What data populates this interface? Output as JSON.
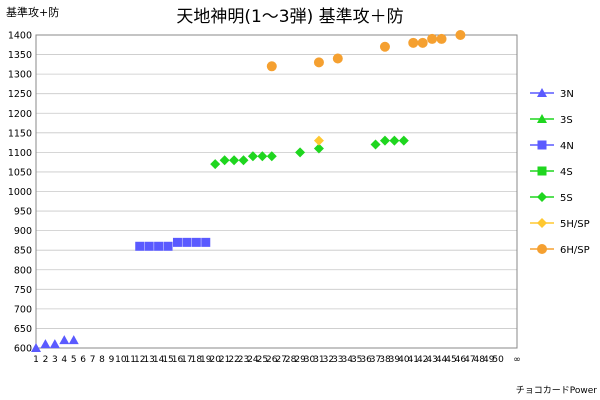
{
  "chart_data": {
    "type": "scatter",
    "title": "天地神明(1～3弾) 基準攻＋防",
    "ylabel": "基準攻+防",
    "xlabel": "",
    "ylim": [
      600,
      1400
    ],
    "y_ticks": [
      600,
      650,
      700,
      750,
      800,
      850,
      900,
      950,
      1000,
      1050,
      1100,
      1150,
      1200,
      1250,
      1300,
      1350,
      1400
    ],
    "x_ticks": [
      "1",
      "2",
      "3",
      "4",
      "5",
      "6",
      "7",
      "8",
      "9",
      "10",
      "11",
      "12",
      "13",
      "14",
      "15",
      "16",
      "17",
      "18",
      "19",
      "20",
      "21",
      "22",
      "23",
      "24",
      "25",
      "26",
      "27",
      "28",
      "29",
      "30",
      "31",
      "32",
      "33",
      "34",
      "35",
      "36",
      "37",
      "38",
      "39",
      "40",
      "41",
      "42",
      "43",
      "44",
      "45",
      "46",
      "47",
      "48",
      "49",
      "50",
      "∞"
    ],
    "x_tick_values": [
      1,
      2,
      3,
      4,
      5,
      6,
      7,
      8,
      9,
      10,
      11,
      12,
      13,
      14,
      15,
      16,
      17,
      18,
      19,
      20,
      21,
      22,
      23,
      24,
      25,
      26,
      27,
      28,
      29,
      30,
      31,
      32,
      33,
      34,
      35,
      36,
      37,
      38,
      39,
      40,
      41,
      42,
      43,
      44,
      45,
      46,
      47,
      48,
      49,
      50,
      52
    ],
    "grid": true,
    "legend_position": "right",
    "credit": "チョコカードPower",
    "series": [
      {
        "name": "3N",
        "marker": "triangle",
        "color": "#5a5aff",
        "points": [
          [
            1,
            600
          ],
          [
            2,
            610
          ],
          [
            3,
            610
          ],
          [
            4,
            620
          ],
          [
            5,
            620
          ]
        ]
      },
      {
        "name": "3S",
        "marker": "triangle",
        "color": "#1fd61f",
        "points": []
      },
      {
        "name": "4N",
        "marker": "square",
        "color": "#5a5aff",
        "points": [
          [
            12,
            860
          ],
          [
            13,
            860
          ],
          [
            14,
            860
          ],
          [
            15,
            860
          ],
          [
            16,
            870
          ],
          [
            17,
            870
          ],
          [
            18,
            870
          ],
          [
            19,
            870
          ]
        ]
      },
      {
        "name": "4S",
        "marker": "square",
        "color": "#1fd61f",
        "points": []
      },
      {
        "name": "5S",
        "marker": "diamond",
        "color": "#1fd61f",
        "points": [
          [
            20,
            1070
          ],
          [
            21,
            1080
          ],
          [
            22,
            1080
          ],
          [
            23,
            1080
          ],
          [
            24,
            1090
          ],
          [
            25,
            1090
          ],
          [
            26,
            1090
          ],
          [
            29,
            1100
          ],
          [
            31,
            1110
          ],
          [
            37,
            1120
          ],
          [
            38,
            1130
          ],
          [
            39,
            1130
          ],
          [
            40,
            1130
          ]
        ]
      },
      {
        "name": "5H/SP",
        "marker": "diamond",
        "color": "#ffc830",
        "points": [
          [
            31,
            1130
          ]
        ]
      },
      {
        "name": "6H/SP",
        "marker": "circle",
        "color": "#f5a030",
        "points": [
          [
            26,
            1320
          ],
          [
            31,
            1330
          ],
          [
            33,
            1340
          ],
          [
            38,
            1370
          ],
          [
            41,
            1380
          ],
          [
            42,
            1380
          ],
          [
            43,
            1390
          ],
          [
            44,
            1390
          ],
          [
            46,
            1400
          ]
        ]
      }
    ]
  }
}
